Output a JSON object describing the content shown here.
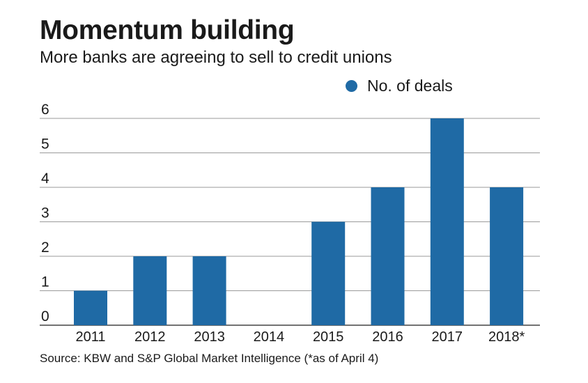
{
  "header": {
    "title": "Momentum building",
    "subtitle": "More banks are agreeing to sell to credit unions"
  },
  "footer": {
    "source": "Source: KBW and S&P Global Market Intelligence (*as of April 4)"
  },
  "colors": {
    "bar": "#1f6aa5",
    "gridline": "#9a9a9a",
    "baseline": "#444444"
  },
  "chart_data": {
    "type": "bar",
    "title": "Momentum building",
    "subtitle": "More banks are agreeing to sell to credit unions",
    "xlabel": "",
    "ylabel": "",
    "categories": [
      "2011",
      "2012",
      "2013",
      "2014",
      "2015",
      "2016",
      "2017",
      "2018*"
    ],
    "series": [
      {
        "name": "No. of deals",
        "values": [
          1,
          2,
          2,
          0,
          3,
          4,
          6,
          4
        ]
      }
    ],
    "ylim": [
      0,
      6
    ],
    "yticks": [
      0,
      1,
      2,
      3,
      4,
      5,
      6
    ],
    "grid": true,
    "legend_position": "top-right"
  }
}
